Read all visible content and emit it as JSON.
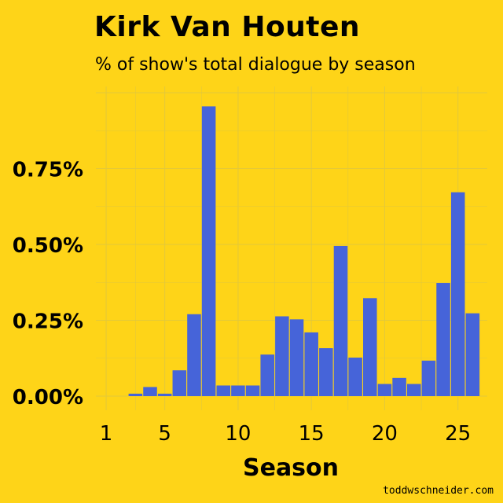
{
  "chart_data": {
    "type": "bar",
    "title": "Kirk Van Houten",
    "subtitle": "% of show's total dialogue by season",
    "xlabel": "Season",
    "ylabel": "",
    "x": [
      1,
      2,
      3,
      4,
      5,
      6,
      7,
      8,
      9,
      10,
      11,
      12,
      13,
      14,
      15,
      16,
      17,
      18,
      19,
      20,
      21,
      22,
      23,
      24,
      25,
      26
    ],
    "values": [
      0.0,
      0.0,
      0.008,
      0.03,
      0.008,
      0.085,
      0.27,
      0.955,
      0.035,
      0.035,
      0.035,
      0.137,
      0.263,
      0.253,
      0.21,
      0.158,
      0.495,
      0.127,
      0.323,
      0.04,
      0.06,
      0.04,
      0.117,
      0.373,
      0.672,
      0.273
    ],
    "x_ticks": [
      1,
      5,
      10,
      15,
      20,
      25
    ],
    "x_tick_labels": [
      "1",
      "5",
      "10",
      "15",
      "20",
      "25"
    ],
    "y_ticks": [
      0,
      0.25,
      0.5,
      0.75
    ],
    "y_tick_labels": [
      "0.00%",
      "0.25%",
      "0.50%",
      "0.75%"
    ],
    "ylim": [
      0,
      1.0
    ],
    "xlim": [
      0.3,
      27.0
    ],
    "grid": true,
    "legend": "none",
    "colors": {
      "bar": "#4664D9",
      "background": "#FED418",
      "grid": "#E3C83A",
      "text": "#000000"
    }
  },
  "credit": "toddwschneider.com"
}
